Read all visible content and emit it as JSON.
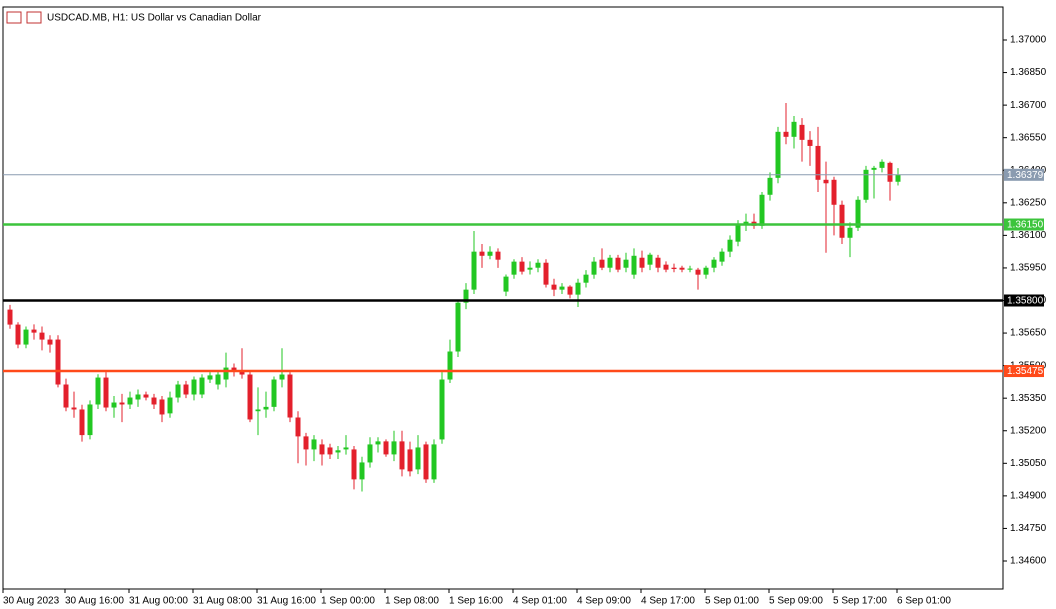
{
  "chart_data": {
    "type": "candlestick",
    "title": "USDCAD.MB, H1:  US Dollar vs Canadian Dollar",
    "categories": [
      "30 Aug 2023",
      null,
      null,
      null,
      null,
      null,
      null,
      "30 Aug 16:00",
      null,
      null,
      null,
      null,
      null,
      null,
      null,
      "31 Aug 00:00",
      null,
      null,
      null,
      null,
      null,
      null,
      null,
      "31 Aug 08:00",
      null,
      null,
      null,
      null,
      null,
      null,
      null,
      "31 Aug 16:00",
      null,
      null,
      null,
      null,
      null,
      null,
      null,
      "1 Sep 00:00",
      null,
      null,
      null,
      null,
      null,
      null,
      null,
      "1 Sep 08:00",
      null,
      null,
      null,
      null,
      null,
      null,
      null,
      "1 Sep 16:00",
      null,
      null,
      null,
      null,
      null,
      null,
      null,
      "4 Sep 01:00",
      null,
      null,
      null,
      null,
      null,
      null,
      null,
      "4 Sep 09:00",
      null,
      null,
      null,
      null,
      null,
      null,
      null,
      "4 Sep 17:00",
      null,
      null,
      null,
      null,
      null,
      null,
      null,
      "5 Sep 01:00",
      null,
      null,
      null,
      null,
      null,
      null,
      null,
      "5 Sep 09:00",
      null,
      null,
      null,
      null,
      null,
      null,
      null,
      "5 Sep 17:00",
      null,
      null,
      null,
      null,
      null,
      null,
      null,
      "6 Sep 01:00"
    ],
    "open": [
      1.35758,
      1.35689,
      1.35597,
      1.35666,
      1.35652,
      1.3562,
      1.3562,
      1.35413,
      1.35307,
      1.35298,
      1.3518,
      1.35321,
      1.35445,
      1.35307,
      1.3533,
      1.35321,
      1.35344,
      1.35367,
      1.35353,
      1.35344,
      1.3528,
      1.35353,
      1.35413,
      1.35367,
      1.35367,
      1.35436,
      1.35413,
      1.35436,
      1.35491,
      1.35472,
      1.35459,
      1.3529,
      1.35298,
      1.3531,
      1.35436,
      1.35459,
      1.35261,
      1.35174,
      1.35114,
      1.35137,
      1.35123,
      1.351,
      1.35114,
      1.35114,
      1.34976,
      1.35054,
      1.35137,
      1.35151,
      1.35091,
      1.35151,
      1.35114,
      1.35022,
      1.35137,
      1.34976,
      1.3516,
      1.35436,
      1.35565,
      1.3579,
      1.3585,
      1.36025,
      1.36006,
      1.36025,
      1.35841,
      1.35919,
      1.35979,
      1.35942,
      1.35951,
      1.35974,
      1.35873,
      1.3585,
      1.35864,
      1.35827,
      1.35882,
      1.35919,
      1.35988,
      1.35951,
      1.35997,
      1.35951,
      1.35919,
      1.35997,
      1.35965,
      1.35997,
      1.35965,
      1.35951,
      1.35951,
      1.35942,
      1.35942,
      1.35919,
      1.35951,
      1.35979,
      1.36025,
      1.36071,
      1.36149,
      1.36163,
      1.36144,
      1.36287,
      1.36365,
      1.36577,
      1.36554,
      1.36609,
      1.3654,
      1.36512,
      1.36356,
      1.36356,
      1.36241,
      1.36089,
      1.36135,
      1.36264,
      1.36402,
      1.36411,
      1.36434,
      1.36347
    ],
    "high": [
      1.3578,
      1.357,
      1.3568,
      1.3569,
      1.3568,
      1.3564,
      1.3564,
      1.3544,
      1.3538,
      1.3532,
      1.3534,
      1.3546,
      1.3547,
      1.3536,
      1.3537,
      1.3538,
      1.3539,
      1.3538,
      1.3537,
      1.3536,
      1.3538,
      1.3543,
      1.3543,
      1.3545,
      1.3546,
      1.3547,
      1.3548,
      1.3556,
      1.3551,
      1.3558,
      1.3548,
      1.354,
      1.3538,
      1.3545,
      1.3558,
      1.3547,
      1.3529,
      1.3519,
      1.3518,
      1.3516,
      1.3514,
      1.3513,
      1.3518,
      1.3513,
      1.3508,
      1.3517,
      1.3517,
      1.3516,
      1.352,
      1.352,
      1.3515,
      1.3518,
      1.3515,
      1.3516,
      1.3547,
      1.3562,
      1.358,
      1.3588,
      1.3612,
      1.3606,
      1.3605,
      1.3604,
      1.3592,
      1.3599,
      1.36,
      1.3598,
      1.3599,
      1.3599,
      1.359,
      1.3588,
      1.3587,
      1.359,
      1.3594,
      1.36,
      1.3604,
      1.3601,
      1.3601,
      1.3602,
      1.3604,
      1.3603,
      1.3602,
      1.3601,
      1.3598,
      1.3597,
      1.3596,
      1.3596,
      1.3595,
      1.3596,
      1.36,
      1.3604,
      1.361,
      1.3617,
      1.362,
      1.362,
      1.363,
      1.3639,
      1.366,
      1.3671,
      1.3665,
      1.3664,
      1.3658,
      1.366,
      1.3644,
      1.3637,
      1.3626,
      1.3616,
      1.3628,
      1.3642,
      1.3642,
      1.3645,
      1.3644,
      1.3641
    ],
    "low": [
      1.3567,
      1.3558,
      1.3558,
      1.3562,
      1.3557,
      1.3556,
      1.354,
      1.3529,
      1.3526,
      1.3515,
      1.3516,
      1.353,
      1.3529,
      1.3526,
      1.3524,
      1.353,
      1.3531,
      1.3534,
      1.353,
      1.3524,
      1.3526,
      1.3533,
      1.3535,
      1.3534,
      1.3535,
      1.3542,
      1.3539,
      1.354,
      1.3545,
      1.3544,
      1.3524,
      1.3518,
      1.3526,
      1.3529,
      1.354,
      1.3524,
      1.3505,
      1.3504,
      1.3506,
      1.3504,
      1.3507,
      1.3507,
      1.3509,
      1.3493,
      1.3492,
      1.3503,
      1.351,
      1.3508,
      1.3506,
      1.3499,
      1.3499,
      1.35,
      1.3496,
      1.3496,
      1.3514,
      1.3542,
      1.3554,
      1.3576,
      1.3583,
      1.3595,
      1.3599,
      1.3595,
      1.3582,
      1.359,
      1.3592,
      1.3592,
      1.3593,
      1.3586,
      1.3582,
      1.3583,
      1.3581,
      1.3577,
      1.3586,
      1.359,
      1.3594,
      1.3593,
      1.3593,
      1.3593,
      1.359,
      1.3593,
      1.3594,
      1.3593,
      1.3593,
      1.3593,
      1.3593,
      1.3593,
      1.3585,
      1.359,
      1.3593,
      1.3596,
      1.36,
      1.3605,
      1.3612,
      1.3613,
      1.3613,
      1.3626,
      1.3634,
      1.3652,
      1.365,
      1.3644,
      1.3642,
      1.363,
      1.3602,
      1.361,
      1.3606,
      1.36,
      1.3612,
      1.3625,
      1.3627,
      1.3639,
      1.3626,
      1.3633
    ],
    "close": [
      1.35689,
      1.35597,
      1.35666,
      1.35652,
      1.3562,
      1.35597,
      1.35413,
      1.35307,
      1.35298,
      1.3518,
      1.35321,
      1.35445,
      1.35307,
      1.3533,
      1.35321,
      1.35353,
      1.35367,
      1.35353,
      1.35321,
      1.35275,
      1.35353,
      1.35413,
      1.35367,
      1.35436,
      1.35445,
      1.35455,
      1.35459,
      1.35491,
      1.35472,
      1.35459,
      1.35252,
      1.35298,
      1.3531,
      1.35436,
      1.35459,
      1.35261,
      1.35174,
      1.35114,
      1.3516,
      1.35091,
      1.35091,
      1.3511,
      1.35123,
      1.34976,
      1.35054,
      1.35137,
      1.35151,
      1.35091,
      1.35151,
      1.35022,
      1.35013,
      1.35123,
      1.34976,
      1.35137,
      1.35436,
      1.35565,
      1.3579,
      1.3585,
      1.36025,
      1.36006,
      1.36025,
      1.35988,
      1.3591,
      1.35979,
      1.35933,
      1.35951,
      1.35974,
      1.35873,
      1.3585,
      1.35864,
      1.35827,
      1.35882,
      1.35919,
      1.35979,
      1.35951,
      1.35997,
      1.35942,
      1.35988,
      1.36006,
      1.35951,
      1.36011,
      1.35951,
      1.35942,
      1.35945,
      1.35942,
      1.35947,
      1.35919,
      1.35951,
      1.35988,
      1.36025,
      1.3608,
      1.36149,
      1.36163,
      1.36144,
      1.36287,
      1.36365,
      1.36577,
      1.36554,
      1.36623,
      1.3654,
      1.36512,
      1.36356,
      1.3634,
      1.36241,
      1.36089,
      1.36135,
      1.36264,
      1.36402,
      1.36411,
      1.36439,
      1.36347,
      1.36379
    ],
    "up_color": "#22c722",
    "down_color": "#e3202c",
    "ylim": [
      1.34471,
      1.37152
    ],
    "yticks": [
      {
        "value": 1.37,
        "label": "1.37000"
      },
      {
        "value": 1.3685,
        "label": "1.36850"
      },
      {
        "value": 1.367,
        "label": "1.36700"
      },
      {
        "value": 1.3655,
        "label": "1.36550"
      },
      {
        "value": 1.364,
        "label": "1.36400"
      },
      {
        "value": 1.3625,
        "label": "1.36250"
      },
      {
        "value": 1.361,
        "label": "1.36100"
      },
      {
        "value": 1.3595,
        "label": "1.35950"
      },
      {
        "value": 1.358,
        "label": "1.35800"
      },
      {
        "value": 1.3565,
        "label": "1.35650"
      },
      {
        "value": 1.355,
        "label": "1.35500"
      },
      {
        "value": 1.3535,
        "label": "1.35350"
      },
      {
        "value": 1.352,
        "label": "1.35200"
      },
      {
        "value": 1.3505,
        "label": "1.35050"
      },
      {
        "value": 1.349,
        "label": "1.34900"
      },
      {
        "value": 1.3475,
        "label": "1.34750"
      },
      {
        "value": 1.346,
        "label": "1.34600"
      }
    ],
    "levels": [
      {
        "value": 1.36379,
        "label": "1.36379",
        "color": "#8a9bb0"
      },
      {
        "value": 1.3615,
        "label": "1.36150",
        "color": "#3cc43c"
      },
      {
        "value": 1.358,
        "label": "1.35800",
        "color": "#000000"
      },
      {
        "value": 1.35475,
        "label": "1.35475",
        "color": "#ff4a1a"
      }
    ]
  }
}
